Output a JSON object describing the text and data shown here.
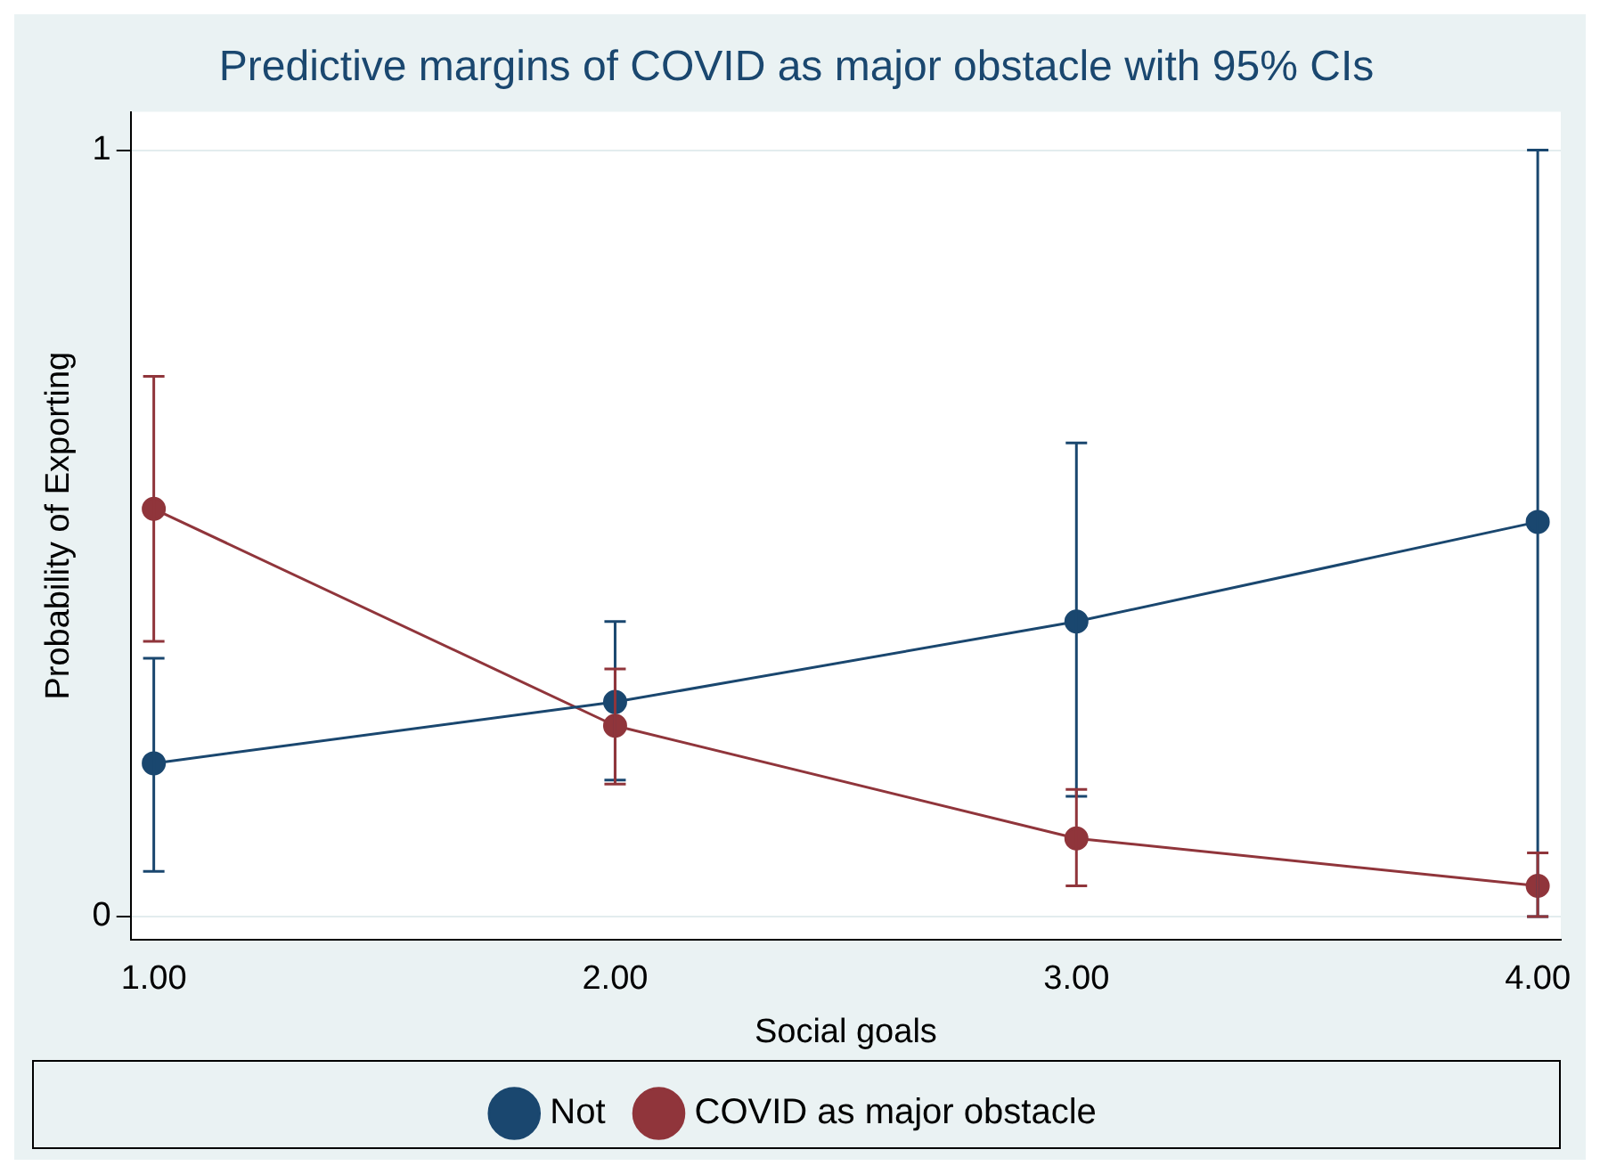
{
  "chart_data": {
    "type": "line",
    "title": "Predictive margins of COVID as major obstacle with 95% CIs",
    "xlabel": "Social goals",
    "ylabel": "Probability of Exporting",
    "x": [
      1,
      2,
      3,
      4
    ],
    "series": [
      {
        "name": "Not",
        "color": "#1a476f",
        "values": [
          0.2,
          0.28,
          0.385,
          0.515
        ],
        "errors": [
          [
            0.059,
            0.337
          ],
          [
            0.178,
            0.385
          ],
          [
            0.157,
            0.618
          ],
          [
            0,
            1
          ]
        ]
      },
      {
        "name": "COVID as major obstacle",
        "color": "#90353b",
        "values": [
          0.532,
          0.249,
          0.102,
          0.04
        ],
        "errors": [
          [
            0.359,
            0.705
          ],
          [
            0.173,
            0.323
          ],
          [
            0.04,
            0.166
          ],
          [
            0,
            0.083
          ]
        ]
      }
    ],
    "xlim": [
      0.95,
      4.05
    ],
    "xticks": [
      {
        "value": 1,
        "label": "1.00"
      },
      {
        "value": 2,
        "label": "2.00"
      },
      {
        "value": 3,
        "label": "3.00"
      },
      {
        "value": 4,
        "label": "4.00"
      }
    ],
    "ylim": [
      -0.03,
      1.05
    ],
    "yticks": [
      0,
      1
    ],
    "grid": "y",
    "legend": "bottom",
    "marker": "circle",
    "line_style": "solid"
  }
}
